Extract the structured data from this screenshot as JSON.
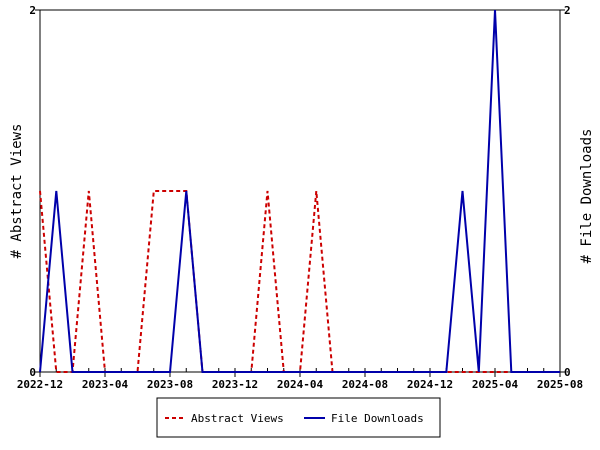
{
  "chart_data": {
    "type": "line",
    "x_ticks": [
      "2022-12",
      "2023-04",
      "2023-08",
      "2023-12",
      "2024-04",
      "2024-08",
      "2024-12",
      "2025-04",
      "2025-08"
    ],
    "x_range": [
      "2022-12",
      "2025-08"
    ],
    "ylabel_left": "# Abstract Views",
    "ylabel_right": "# File Downloads",
    "ylim_left": [
      0,
      2
    ],
    "ylim_right": [
      0,
      2
    ],
    "y_ticks_left": [
      "0",
      "2"
    ],
    "y_ticks_right": [
      "0",
      "2"
    ],
    "grid": false,
    "legend_position": "bottom-center",
    "series": [
      {
        "name": "Abstract Views",
        "color": "#cc0000",
        "style": "dashed",
        "axis": "left",
        "x": [
          "2022-12",
          "2023-01",
          "2023-02",
          "2023-03",
          "2023-04",
          "2023-05",
          "2023-06",
          "2023-07",
          "2023-08",
          "2023-09",
          "2023-10",
          "2023-11",
          "2023-12",
          "2024-01",
          "2024-02",
          "2024-03",
          "2024-04",
          "2024-05",
          "2024-06",
          "2024-07",
          "2024-08",
          "2024-09",
          "2024-10",
          "2024-11",
          "2024-12",
          "2025-01",
          "2025-02",
          "2025-03",
          "2025-04",
          "2025-05",
          "2025-06",
          "2025-07",
          "2025-08"
        ],
        "values": [
          1,
          0,
          0,
          1,
          0,
          0,
          0,
          1,
          1,
          1,
          0,
          0,
          0,
          0,
          1,
          0,
          0,
          1,
          0,
          0,
          0,
          0,
          0,
          0,
          0,
          0,
          0,
          0,
          0,
          0,
          0,
          0,
          0
        ]
      },
      {
        "name": "File Downloads",
        "color": "#0000aa",
        "style": "solid",
        "axis": "right",
        "x": [
          "2022-12",
          "2023-01",
          "2023-02",
          "2023-03",
          "2023-04",
          "2023-05",
          "2023-06",
          "2023-07",
          "2023-08",
          "2023-09",
          "2023-10",
          "2023-11",
          "2023-12",
          "2024-01",
          "2024-02",
          "2024-03",
          "2024-04",
          "2024-05",
          "2024-06",
          "2024-07",
          "2024-08",
          "2024-09",
          "2024-10",
          "2024-11",
          "2024-12",
          "2025-01",
          "2025-02",
          "2025-03",
          "2025-04",
          "2025-05",
          "2025-06",
          "2025-07",
          "2025-08"
        ],
        "values": [
          0,
          1,
          0,
          0,
          0,
          0,
          0,
          0,
          0,
          1,
          0,
          0,
          0,
          0,
          0,
          0,
          0,
          0,
          0,
          0,
          0,
          0,
          0,
          0,
          0,
          0,
          1,
          0,
          2,
          0,
          0,
          0,
          0
        ]
      }
    ]
  }
}
